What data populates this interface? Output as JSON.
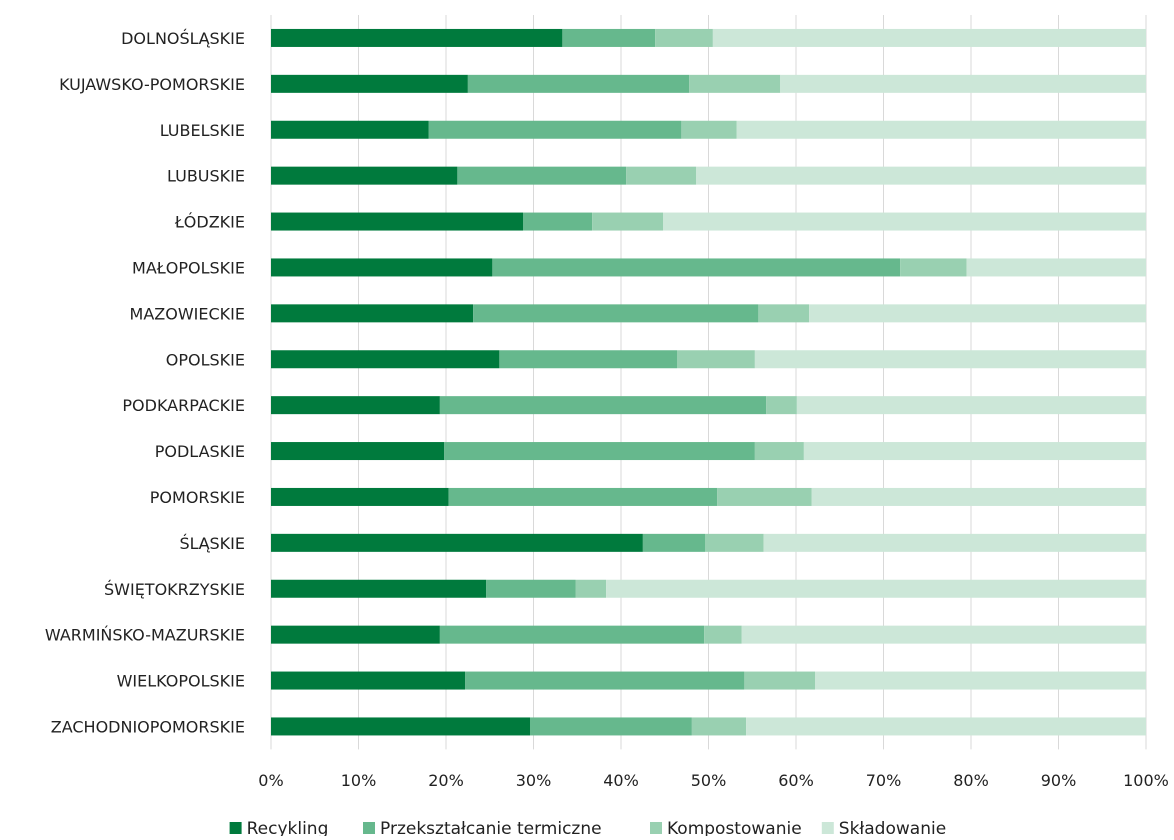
{
  "chart_data": {
    "type": "bar",
    "orientation": "horizontal",
    "stacked": true,
    "percent": true,
    "title": "",
    "xlabel": "",
    "ylabel": "",
    "xlim": [
      0,
      100
    ],
    "x_ticks": [
      "0%",
      "10%",
      "20%",
      "30%",
      "40%",
      "50%",
      "60%",
      "70%",
      "80%",
      "90%",
      "100%"
    ],
    "grid": "vertical",
    "legend_position": "bottom",
    "categories": [
      "DOLNOŚLĄSKIE",
      "KUJAWSKO-POMORSKIE",
      "LUBELSKIE",
      "LUBUSKIE",
      "ŁÓDZKIE",
      "MAŁOPOLSKIE",
      "MAZOWIECKIE",
      "OPOLSKIE",
      "PODKARPACKIE",
      "PODLASKIE",
      "POMORSKIE",
      "ŚLĄSKIE",
      "ŚWIĘTOKRZYSKIE",
      "WARMIŃSKO-MAZURSKIE",
      "WIELKOPOLSKIE",
      "ZACHODNIOPOMORSKIE"
    ],
    "series": [
      {
        "name": "Recykling",
        "color": "#007a3d",
        "values": [
          33.3,
          22.5,
          18.0,
          21.3,
          28.8,
          25.3,
          23.1,
          26.1,
          19.3,
          19.8,
          20.3,
          42.5,
          24.6,
          19.3,
          22.2,
          29.6
        ]
      },
      {
        "name": "Przekształcanie termiczne",
        "color": "#66b88d",
        "values": [
          10.6,
          25.3,
          28.9,
          19.3,
          7.9,
          46.6,
          32.6,
          20.3,
          37.3,
          35.5,
          30.7,
          7.1,
          10.2,
          30.2,
          31.9,
          18.5
        ]
      },
      {
        "name": "Kompostowanie",
        "color": "#99d0b1",
        "values": [
          6.6,
          10.4,
          6.3,
          8.0,
          8.1,
          7.6,
          5.8,
          8.9,
          3.5,
          5.6,
          10.8,
          6.7,
          3.5,
          4.3,
          8.1,
          6.2
        ]
      },
      {
        "name": "Składowanie",
        "color": "#cce7d8",
        "values": [
          49.5,
          41.8,
          46.8,
          51.4,
          55.2,
          20.5,
          38.5,
          44.7,
          39.9,
          39.1,
          38.2,
          43.7,
          61.7,
          46.2,
          37.8,
          45.7
        ]
      }
    ]
  }
}
